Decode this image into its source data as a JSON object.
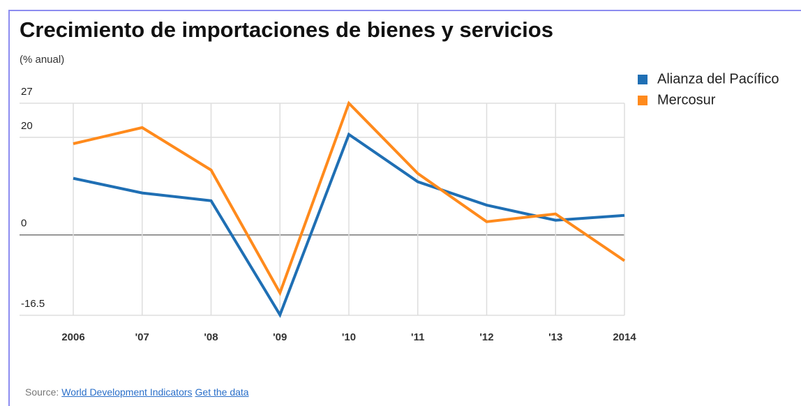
{
  "chart_data": {
    "type": "line",
    "title": "Crecimiento de importaciones de bienes y servicios",
    "subtitle": "(% anual)",
    "categories": [
      "2006",
      "'07",
      "'08",
      "'09",
      "'10",
      "'11",
      "'12",
      "'13",
      "2014"
    ],
    "series": [
      {
        "name": "Alianza del Pacífico",
        "color": "#1f6fb4",
        "values": [
          11.6,
          8.6,
          7.0,
          -16.4,
          20.6,
          10.9,
          6.1,
          3.0,
          4.0
        ]
      },
      {
        "name": "Mercosur",
        "color": "#ff8a1c",
        "values": [
          18.7,
          22.0,
          13.3,
          -11.9,
          27.0,
          12.6,
          2.7,
          4.3,
          -5.3
        ]
      }
    ],
    "ylim": [
      -16.5,
      27
    ],
    "yticks": [
      -16.5,
      0,
      20,
      27
    ],
    "grid": true,
    "legend": "top-right"
  },
  "source": {
    "label": "Source:",
    "links": [
      "World Development Indicators",
      "Get the data"
    ]
  }
}
